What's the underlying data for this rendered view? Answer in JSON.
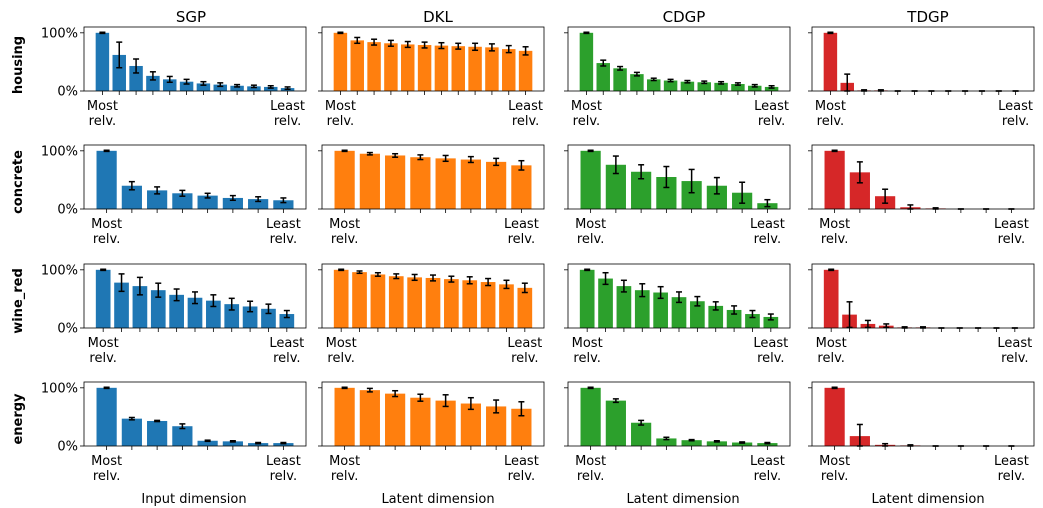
{
  "columns": [
    "SGP",
    "DKL",
    "CDGP",
    "TDGP"
  ],
  "rows": [
    "housing",
    "concrete",
    "wine_red",
    "energy"
  ],
  "y_tick_labels": [
    "0%",
    "100%"
  ],
  "x_tick_first": [
    "Most",
    "relv."
  ],
  "x_tick_last": [
    "Least",
    "relv."
  ],
  "x_axis_labels": [
    "Input dimension",
    "Latent dimension",
    "Latent dimension",
    "Latent dimension"
  ],
  "colors": {
    "SGP": "#1f77b4",
    "DKL": "#ff7f0e",
    "CDGP": "#2ca02c",
    "TDGP": "#d62728"
  },
  "chart_data": [
    {
      "type": "bar",
      "row": "housing",
      "column": "SGP",
      "ylim": [
        0,
        1.1
      ],
      "values": [
        1.0,
        0.62,
        0.43,
        0.26,
        0.2,
        0.16,
        0.13,
        0.11,
        0.09,
        0.08,
        0.07,
        0.05
      ],
      "errors": [
        0.01,
        0.22,
        0.12,
        0.07,
        0.05,
        0.04,
        0.03,
        0.03,
        0.02,
        0.02,
        0.02,
        0.02
      ]
    },
    {
      "type": "bar",
      "row": "housing",
      "column": "DKL",
      "ylim": [
        0,
        1.1
      ],
      "values": [
        1.0,
        0.87,
        0.84,
        0.82,
        0.8,
        0.79,
        0.78,
        0.77,
        0.76,
        0.75,
        0.72,
        0.69
      ],
      "errors": [
        0.01,
        0.05,
        0.05,
        0.05,
        0.05,
        0.05,
        0.05,
        0.05,
        0.06,
        0.06,
        0.06,
        0.07
      ]
    },
    {
      "type": "bar",
      "row": "housing",
      "column": "CDGP",
      "ylim": [
        0,
        1.1
      ],
      "values": [
        1.0,
        0.48,
        0.39,
        0.29,
        0.2,
        0.18,
        0.16,
        0.15,
        0.14,
        0.12,
        0.09,
        0.07
      ],
      "errors": [
        0.01,
        0.05,
        0.03,
        0.03,
        0.02,
        0.02,
        0.02,
        0.02,
        0.02,
        0.02,
        0.02,
        0.02
      ]
    },
    {
      "type": "bar",
      "row": "housing",
      "column": "TDGP",
      "ylim": [
        0,
        1.1
      ],
      "values": [
        1.0,
        0.14,
        0.01,
        0.01,
        0.0,
        0.0,
        0.0,
        0.0,
        0.0,
        0.0,
        0.0,
        0.0
      ],
      "errors": [
        0.01,
        0.15,
        0.01,
        0.01,
        0.0,
        0.0,
        0.0,
        0.0,
        0.0,
        0.0,
        0.0,
        0.0
      ]
    },
    {
      "type": "bar",
      "row": "concrete",
      "column": "SGP",
      "ylim": [
        0,
        1.1
      ],
      "values": [
        1.0,
        0.4,
        0.32,
        0.27,
        0.23,
        0.19,
        0.17,
        0.15
      ],
      "errors": [
        0.01,
        0.07,
        0.06,
        0.05,
        0.04,
        0.04,
        0.04,
        0.04
      ]
    },
    {
      "type": "bar",
      "row": "concrete",
      "column": "DKL",
      "ylim": [
        0,
        1.1
      ],
      "values": [
        1.0,
        0.95,
        0.92,
        0.89,
        0.87,
        0.85,
        0.81,
        0.75
      ],
      "errors": [
        0.01,
        0.02,
        0.03,
        0.04,
        0.05,
        0.05,
        0.06,
        0.08
      ]
    },
    {
      "type": "bar",
      "row": "concrete",
      "column": "CDGP",
      "ylim": [
        0,
        1.1
      ],
      "values": [
        1.0,
        0.76,
        0.64,
        0.55,
        0.48,
        0.4,
        0.28,
        0.1
      ],
      "errors": [
        0.01,
        0.15,
        0.12,
        0.18,
        0.2,
        0.14,
        0.18,
        0.06
      ]
    },
    {
      "type": "bar",
      "row": "concrete",
      "column": "TDGP",
      "ylim": [
        0,
        1.1
      ],
      "values": [
        1.0,
        0.63,
        0.22,
        0.03,
        0.01,
        0.0,
        0.0,
        0.0
      ],
      "errors": [
        0.01,
        0.18,
        0.12,
        0.04,
        0.01,
        0.0,
        0.0,
        0.0
      ]
    },
    {
      "type": "bar",
      "row": "wine_red",
      "column": "SGP",
      "ylim": [
        0,
        1.1
      ],
      "values": [
        1.0,
        0.78,
        0.72,
        0.65,
        0.57,
        0.52,
        0.47,
        0.41,
        0.37,
        0.33,
        0.24
      ],
      "errors": [
        0.01,
        0.15,
        0.15,
        0.12,
        0.1,
        0.1,
        0.1,
        0.1,
        0.09,
        0.08,
        0.06
      ]
    },
    {
      "type": "bar",
      "row": "wine_red",
      "column": "DKL",
      "ylim": [
        0,
        1.1
      ],
      "values": [
        1.0,
        0.96,
        0.92,
        0.89,
        0.87,
        0.86,
        0.84,
        0.82,
        0.79,
        0.75,
        0.69
      ],
      "errors": [
        0.01,
        0.02,
        0.03,
        0.04,
        0.05,
        0.05,
        0.05,
        0.06,
        0.06,
        0.07,
        0.08
      ]
    },
    {
      "type": "bar",
      "row": "wine_red",
      "column": "CDGP",
      "ylim": [
        0,
        1.1
      ],
      "values": [
        1.0,
        0.85,
        0.72,
        0.65,
        0.61,
        0.53,
        0.46,
        0.38,
        0.31,
        0.24,
        0.19
      ],
      "errors": [
        0.01,
        0.1,
        0.1,
        0.11,
        0.1,
        0.09,
        0.08,
        0.07,
        0.07,
        0.06,
        0.05
      ]
    },
    {
      "type": "bar",
      "row": "wine_red",
      "column": "TDGP",
      "ylim": [
        0,
        1.1
      ],
      "values": [
        1.0,
        0.23,
        0.07,
        0.04,
        0.01,
        0.01,
        0.0,
        0.0,
        0.0,
        0.0,
        0.0
      ],
      "errors": [
        0.01,
        0.22,
        0.06,
        0.03,
        0.01,
        0.01,
        0.0,
        0.0,
        0.0,
        0.0,
        0.0
      ]
    },
    {
      "type": "bar",
      "row": "energy",
      "column": "SGP",
      "ylim": [
        0,
        1.1
      ],
      "values": [
        1.0,
        0.47,
        0.43,
        0.34,
        0.09,
        0.08,
        0.05,
        0.05
      ],
      "errors": [
        0.01,
        0.02,
        0.01,
        0.04,
        0.01,
        0.01,
        0.01,
        0.01
      ]
    },
    {
      "type": "bar",
      "row": "energy",
      "column": "DKL",
      "ylim": [
        0,
        1.1
      ],
      "values": [
        1.0,
        0.96,
        0.9,
        0.83,
        0.78,
        0.73,
        0.68,
        0.64
      ],
      "errors": [
        0.01,
        0.03,
        0.05,
        0.06,
        0.1,
        0.1,
        0.11,
        0.12
      ]
    },
    {
      "type": "bar",
      "row": "energy",
      "column": "CDGP",
      "ylim": [
        0,
        1.1
      ],
      "values": [
        1.0,
        0.78,
        0.4,
        0.13,
        0.1,
        0.08,
        0.06,
        0.05
      ],
      "errors": [
        0.01,
        0.03,
        0.04,
        0.02,
        0.01,
        0.01,
        0.01,
        0.01
      ]
    },
    {
      "type": "bar",
      "row": "energy",
      "column": "TDGP",
      "ylim": [
        0,
        1.1
      ],
      "values": [
        1.0,
        0.17,
        0.02,
        0.01,
        0.0,
        0.0,
        0.0,
        0.0
      ],
      "errors": [
        0.01,
        0.2,
        0.02,
        0.01,
        0.0,
        0.0,
        0.0,
        0.0
      ]
    }
  ]
}
